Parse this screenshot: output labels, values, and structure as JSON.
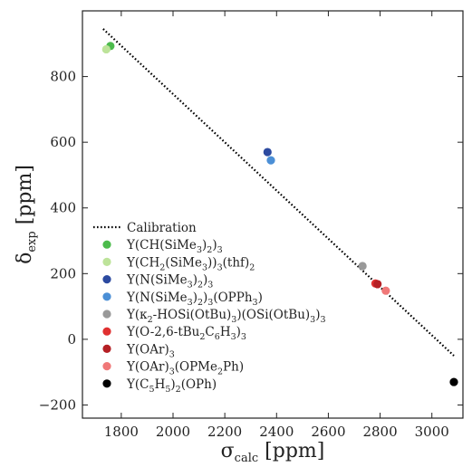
{
  "chart_data": {
    "type": "scatter",
    "xlabel": {
      "main": "σ",
      "sub": "calc",
      "unit": " [ppm]"
    },
    "ylabel": {
      "main": "δ",
      "sub": "exp",
      "unit": " [ppm]"
    },
    "xlim": [
      1650,
      3120
    ],
    "ylim": [
      -240,
      1000
    ],
    "xticks": [
      1800,
      2000,
      2200,
      2400,
      2600,
      2800,
      3000
    ],
    "yticks": [
      -200,
      0,
      200,
      400,
      600,
      800
    ],
    "grid": false,
    "legend_position": "lower-left",
    "calibration": {
      "name": "Calibration",
      "style": "dotted",
      "color": "#000000",
      "x": [
        1730,
        3085
      ],
      "y": [
        945,
        -50
      ]
    },
    "series": [
      {
        "name": "Y(CH(SiMe3)2)3",
        "color": "#4cbb4c",
        "x": [
          1758
        ],
        "y": [
          893
        ]
      },
      {
        "name": "Y(CH2(SiMe3))3(thf)2",
        "color": "#bde39a",
        "x": [
          1742
        ],
        "y": [
          883
        ]
      },
      {
        "name": "Y(N(SiMe3)2)3",
        "color": "#2c4aa0",
        "x": [
          2365
        ],
        "y": [
          570
        ]
      },
      {
        "name": "Y(N(SiMe3)2)3(OPPh3)",
        "color": "#4b8fd6",
        "x": [
          2378
        ],
        "y": [
          545
        ]
      },
      {
        "name": "Y(κ2-HOSi(OtBu)3)(OSi(OtBu)3)3",
        "color": "#999999",
        "x": [
          2732
        ],
        "y": [
          223
        ]
      },
      {
        "name": "Y(O-2,6-tBu2C6H3)3",
        "color": "#e03030",
        "x": [
          2782
        ],
        "y": [
          170
        ]
      },
      {
        "name": "Y(OAr)3",
        "color": "#b52025",
        "x": [
          2790
        ],
        "y": [
          168
        ]
      },
      {
        "name": "Y(OAr)3(OPMe2Ph)",
        "color": "#f07878",
        "x": [
          2822
        ],
        "y": [
          148
        ]
      },
      {
        "name": "Y(C5H5)2(OPh)",
        "color": "#000000",
        "x": [
          3085
        ],
        "y": [
          -130
        ]
      }
    ],
    "legend_rich": [
      [
        [
          "Calibration",
          "n"
        ]
      ],
      [
        [
          "Y(CH(SiMe",
          "n"
        ],
        [
          "3",
          "s"
        ],
        [
          ")",
          "n"
        ],
        [
          "2",
          "s"
        ],
        [
          ")",
          "n"
        ],
        [
          "3",
          "s"
        ]
      ],
      [
        [
          "Y(CH",
          "n"
        ],
        [
          "2",
          "s"
        ],
        [
          "(SiMe",
          "n"
        ],
        [
          "3",
          "s"
        ],
        [
          "))",
          "n"
        ],
        [
          "3",
          "s"
        ],
        [
          "(thf)",
          "n"
        ],
        [
          "2",
          "s"
        ]
      ],
      [
        [
          "Y(N(SiMe",
          "n"
        ],
        [
          "3",
          "s"
        ],
        [
          ")",
          "n"
        ],
        [
          "2",
          "s"
        ],
        [
          ")",
          "n"
        ],
        [
          "3",
          "s"
        ]
      ],
      [
        [
          "Y(N(SiMe",
          "n"
        ],
        [
          "3",
          "s"
        ],
        [
          ")",
          "n"
        ],
        [
          "2",
          "s"
        ],
        [
          ")",
          "n"
        ],
        [
          "3",
          "s"
        ],
        [
          "(OPPh",
          "n"
        ],
        [
          "3",
          "s"
        ],
        [
          ")",
          "n"
        ]
      ],
      [
        [
          "Y(κ",
          "n"
        ],
        [
          "2",
          "s"
        ],
        [
          "-HOSi(OtBu)",
          "n"
        ],
        [
          "3",
          "s"
        ],
        [
          ")(OSi(OtBu)",
          "n"
        ],
        [
          "3",
          "s"
        ],
        [
          ")",
          "n"
        ],
        [
          "3",
          "s"
        ]
      ],
      [
        [
          "Y(O-2,6-tBu",
          "n"
        ],
        [
          "2",
          "s"
        ],
        [
          "C",
          "n"
        ],
        [
          "6",
          "s"
        ],
        [
          "H",
          "n"
        ],
        [
          "3",
          "s"
        ],
        [
          ")",
          "n"
        ],
        [
          "3",
          "s"
        ]
      ],
      [
        [
          "Y(OAr)",
          "n"
        ],
        [
          "3",
          "s"
        ]
      ],
      [
        [
          "Y(OAr)",
          "n"
        ],
        [
          "3",
          "s"
        ],
        [
          "(OPMe",
          "n"
        ],
        [
          "2",
          "s"
        ],
        [
          "Ph)",
          "n"
        ]
      ],
      [
        [
          "Y(C",
          "n"
        ],
        [
          "5",
          "s"
        ],
        [
          "H",
          "n"
        ],
        [
          "5",
          "s"
        ],
        [
          ")",
          "n"
        ],
        [
          "2",
          "s"
        ],
        [
          "(OPh)",
          "n"
        ]
      ]
    ]
  }
}
